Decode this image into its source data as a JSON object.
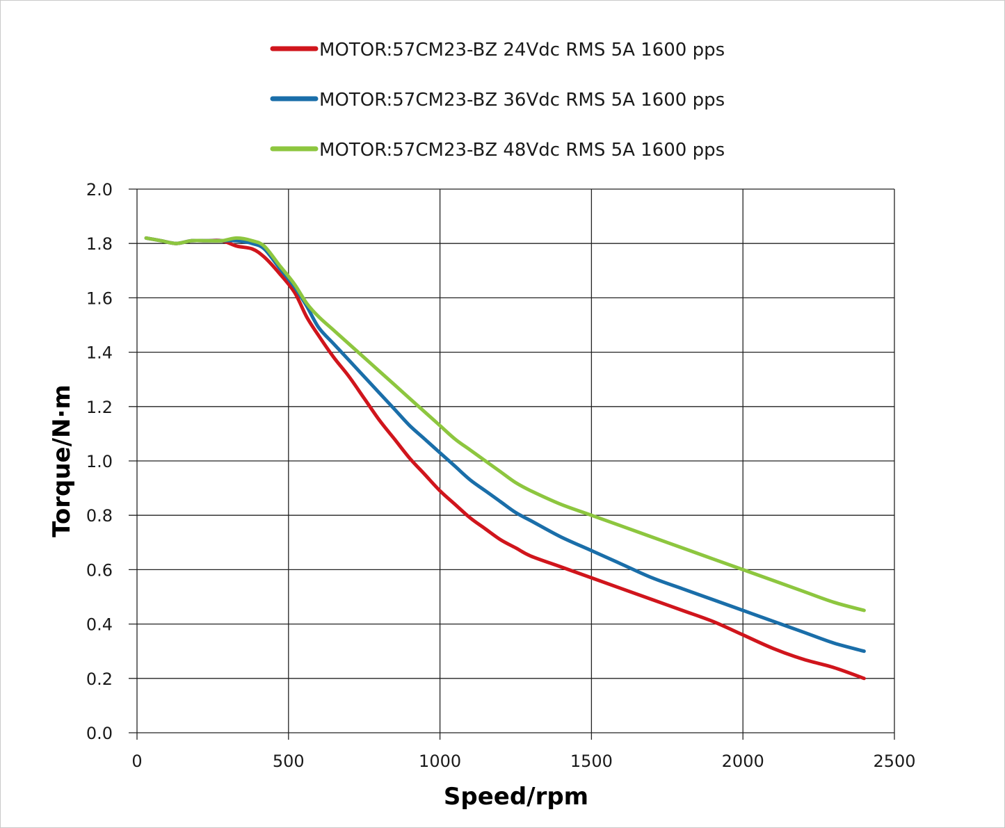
{
  "chart_data": {
    "type": "line",
    "xlabel": "Speed/rpm",
    "ylabel": "Torque/N·m",
    "xlim": [
      0,
      2500
    ],
    "ylim": [
      0,
      2.0
    ],
    "xticks": [
      0,
      500,
      1000,
      1500,
      2000,
      2500
    ],
    "xtick_labels": [
      "0",
      "500",
      "1000",
      "1500",
      "2000",
      "2500"
    ],
    "yticks": [
      0,
      0.2,
      0.4,
      0.6,
      0.8,
      1.0,
      1.2,
      1.4,
      1.6,
      1.8,
      2.0
    ],
    "ytick_labels": [
      "0.0",
      "0.2",
      "0.4",
      "0.6",
      "0.8",
      "1.0",
      "1.2",
      "1.4",
      "1.6",
      "1.8",
      "2.0"
    ],
    "grid": true,
    "legend_position": "top",
    "series": [
      {
        "name": "MOTOR:57CM23-BZ 24Vdc RMS 5A 1600 pps",
        "color": "#d0151c",
        "points": [
          [
            30,
            1.82
          ],
          [
            80,
            1.81
          ],
          [
            130,
            1.8
          ],
          [
            180,
            1.81
          ],
          [
            230,
            1.81
          ],
          [
            280,
            1.81
          ],
          [
            330,
            1.79
          ],
          [
            380,
            1.78
          ],
          [
            420,
            1.75
          ],
          [
            470,
            1.69
          ],
          [
            520,
            1.62
          ],
          [
            560,
            1.53
          ],
          [
            600,
            1.46
          ],
          [
            650,
            1.38
          ],
          [
            700,
            1.31
          ],
          [
            750,
            1.23
          ],
          [
            800,
            1.15
          ],
          [
            850,
            1.08
          ],
          [
            900,
            1.01
          ],
          [
            950,
            0.95
          ],
          [
            1000,
            0.89
          ],
          [
            1050,
            0.84
          ],
          [
            1100,
            0.79
          ],
          [
            1150,
            0.75
          ],
          [
            1200,
            0.71
          ],
          [
            1250,
            0.68
          ],
          [
            1300,
            0.65
          ],
          [
            1400,
            0.61
          ],
          [
            1500,
            0.57
          ],
          [
            1600,
            0.53
          ],
          [
            1700,
            0.49
          ],
          [
            1800,
            0.45
          ],
          [
            1900,
            0.41
          ],
          [
            2000,
            0.36
          ],
          [
            2100,
            0.31
          ],
          [
            2200,
            0.27
          ],
          [
            2300,
            0.24
          ],
          [
            2400,
            0.2
          ]
        ]
      },
      {
        "name": "MOTOR:57CM23-BZ 36Vdc RMS 5A 1600 pps",
        "color": "#1a6ea9",
        "points": [
          [
            30,
            1.82
          ],
          [
            80,
            1.81
          ],
          [
            130,
            1.8
          ],
          [
            180,
            1.81
          ],
          [
            230,
            1.81
          ],
          [
            280,
            1.81
          ],
          [
            330,
            1.81
          ],
          [
            380,
            1.8
          ],
          [
            420,
            1.78
          ],
          [
            470,
            1.71
          ],
          [
            520,
            1.64
          ],
          [
            560,
            1.57
          ],
          [
            600,
            1.49
          ],
          [
            650,
            1.43
          ],
          [
            700,
            1.37
          ],
          [
            750,
            1.31
          ],
          [
            800,
            1.25
          ],
          [
            850,
            1.19
          ],
          [
            900,
            1.13
          ],
          [
            950,
            1.08
          ],
          [
            1000,
            1.03
          ],
          [
            1050,
            0.98
          ],
          [
            1100,
            0.93
          ],
          [
            1150,
            0.89
          ],
          [
            1200,
            0.85
          ],
          [
            1250,
            0.81
          ],
          [
            1300,
            0.78
          ],
          [
            1400,
            0.72
          ],
          [
            1500,
            0.67
          ],
          [
            1600,
            0.62
          ],
          [
            1700,
            0.57
          ],
          [
            1800,
            0.53
          ],
          [
            1900,
            0.49
          ],
          [
            2000,
            0.45
          ],
          [
            2100,
            0.41
          ],
          [
            2200,
            0.37
          ],
          [
            2300,
            0.33
          ],
          [
            2400,
            0.3
          ]
        ]
      },
      {
        "name": "MOTOR:57CM23-BZ 48Vdc RMS 5A 1600 pps",
        "color": "#8dc63f",
        "points": [
          [
            30,
            1.82
          ],
          [
            80,
            1.81
          ],
          [
            130,
            1.8
          ],
          [
            180,
            1.81
          ],
          [
            230,
            1.81
          ],
          [
            280,
            1.81
          ],
          [
            330,
            1.82
          ],
          [
            380,
            1.81
          ],
          [
            420,
            1.79
          ],
          [
            470,
            1.72
          ],
          [
            520,
            1.65
          ],
          [
            560,
            1.58
          ],
          [
            600,
            1.53
          ],
          [
            650,
            1.48
          ],
          [
            700,
            1.43
          ],
          [
            750,
            1.38
          ],
          [
            800,
            1.33
          ],
          [
            850,
            1.28
          ],
          [
            900,
            1.23
          ],
          [
            950,
            1.18
          ],
          [
            1000,
            1.13
          ],
          [
            1050,
            1.08
          ],
          [
            1100,
            1.04
          ],
          [
            1150,
            1.0
          ],
          [
            1200,
            0.96
          ],
          [
            1250,
            0.92
          ],
          [
            1300,
            0.89
          ],
          [
            1400,
            0.84
          ],
          [
            1500,
            0.8
          ],
          [
            1600,
            0.76
          ],
          [
            1700,
            0.72
          ],
          [
            1800,
            0.68
          ],
          [
            1900,
            0.64
          ],
          [
            2000,
            0.6
          ],
          [
            2100,
            0.56
          ],
          [
            2200,
            0.52
          ],
          [
            2300,
            0.48
          ],
          [
            2400,
            0.45
          ]
        ]
      }
    ]
  }
}
